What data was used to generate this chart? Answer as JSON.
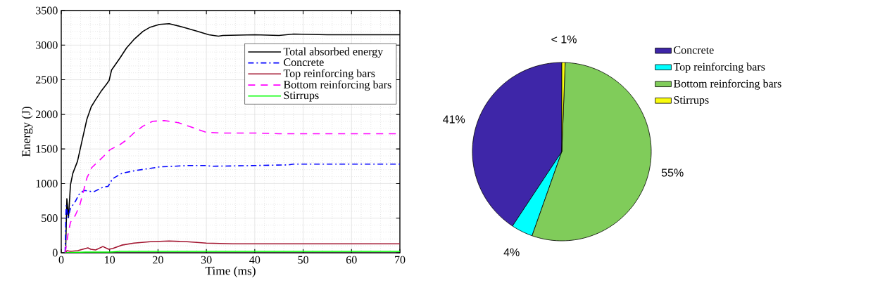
{
  "chart_data": [
    {
      "type": "line",
      "xlabel": "Time (ms)",
      "ylabel": "Energy (J)",
      "xlim": [
        0,
        70
      ],
      "xticks": [
        0,
        10,
        20,
        30,
        40,
        50,
        60,
        70
      ],
      "ylim": [
        0,
        3500
      ],
      "yticks": [
        0,
        500,
        1000,
        1500,
        2000,
        2500,
        3000,
        3500
      ],
      "grid": true,
      "legend": "top right",
      "marker": "none",
      "series": [
        {
          "name": "Total absorbed energy",
          "color": "#000000",
          "line_style": "solid",
          "x": [
            0.9,
            1.16,
            1.5,
            1.9,
            2.4,
            3.35,
            4.3,
            5.3,
            6.2,
            7.0,
            8.2,
            9.4,
            9.9,
            10.4,
            12.1,
            13.5,
            15.0,
            16.9,
            18.4,
            20.3,
            22.3,
            25.2,
            28.1,
            30.5,
            32.5,
            33.4,
            40,
            45,
            48,
            55,
            60,
            70
          ],
          "values": [
            10,
            780,
            510,
            980,
            1150,
            1320,
            1620,
            1930,
            2110,
            2200,
            2330,
            2440,
            2490,
            2640,
            2810,
            2960,
            3080,
            3200,
            3260,
            3300,
            3310,
            3260,
            3200,
            3150,
            3130,
            3140,
            3150,
            3140,
            3160,
            3150,
            3150,
            3150
          ]
        },
        {
          "name": "Concrete",
          "color": "#0000ff",
          "line_style": "dashdot",
          "x": [
            0.8,
            1.0,
            1.4,
            1.9,
            2.9,
            3.8,
            4.8,
            6.7,
            8.7,
            9.7,
            10.6,
            12.6,
            15.5,
            18.4,
            20.3,
            23.2,
            26.1,
            30.0,
            31.0,
            40,
            47,
            48,
            70
          ],
          "values": [
            0,
            680,
            510,
            640,
            740,
            860,
            900,
            880,
            950,
            960,
            1070,
            1150,
            1190,
            1220,
            1240,
            1250,
            1260,
            1260,
            1250,
            1260,
            1270,
            1280,
            1280
          ]
        },
        {
          "name": "Top reinforcing bars",
          "color": "#a2142f",
          "line_style": "solid",
          "x": [
            0.8,
            1.2,
            1.9,
            3.4,
            5.5,
            6.1,
            7.1,
            8.6,
            9.8,
            10.6,
            12.5,
            15.0,
            18.4,
            22.3,
            26.0,
            30.0,
            35.5,
            50,
            70
          ],
          "values": [
            0,
            30,
            20,
            30,
            70,
            50,
            40,
            90,
            50,
            60,
            110,
            140,
            160,
            170,
            160,
            140,
            130,
            130,
            130
          ]
        },
        {
          "name": "Bottom reinforcing bars",
          "color": "#ff00ff",
          "line_style": "dashed",
          "x": [
            0.8,
            1.4,
            1.9,
            2.9,
            3.8,
            5.3,
            6.3,
            7.2,
            8.7,
            10.1,
            12.1,
            13.5,
            15.0,
            16.9,
            18.9,
            21.3,
            24.2,
            27.1,
            30.0,
            33.0,
            40,
            45,
            70
          ],
          "values": [
            0,
            270,
            440,
            540,
            680,
            1080,
            1230,
            1290,
            1390,
            1490,
            1560,
            1630,
            1730,
            1830,
            1900,
            1910,
            1880,
            1810,
            1740,
            1730,
            1730,
            1720,
            1720
          ]
        },
        {
          "name": "Stirrups",
          "color": "#00ff00",
          "line_style": "solid",
          "x": [
            0.8,
            5,
            10,
            12,
            20,
            70
          ],
          "values": [
            0,
            10,
            10,
            20,
            20,
            20
          ]
        }
      ]
    },
    {
      "type": "pie",
      "legend": "right",
      "categories": [
        "Concrete",
        "Top reinforcing bars",
        "Bottom reinforcing bars",
        "Stirrups"
      ],
      "values": [
        40.7,
        3.9,
        54.8,
        0.6
      ],
      "colors": [
        "#3e26a8",
        "#00ffff",
        "#80cc5a",
        "#f9fb0e"
      ],
      "value_labels": [
        "41%",
        "4%",
        "55%",
        "< 1%"
      ]
    }
  ]
}
